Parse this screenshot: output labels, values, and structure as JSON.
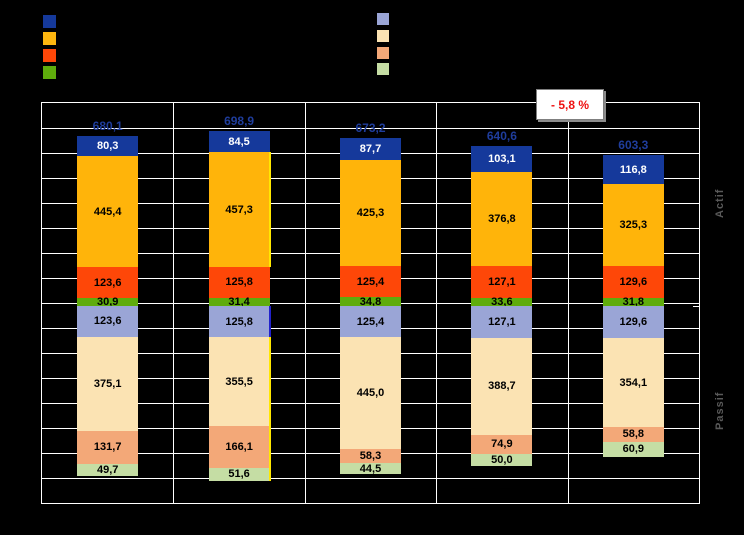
{
  "window": {
    "background": "#000000"
  },
  "legend": {
    "actif_swatches": [
      {
        "name": "navy",
        "color": "#15399B"
      },
      {
        "name": "amber",
        "color": "#FDB60F"
      },
      {
        "name": "orange-red",
        "color": "#FE4708"
      },
      {
        "name": "green",
        "color": "#5FAC0C"
      }
    ],
    "passif_swatches": [
      {
        "name": "periwinkle",
        "color": "#9AA5D6"
      },
      {
        "name": "cream",
        "color": "#FBE3B3"
      },
      {
        "name": "salmon",
        "color": "#F3A878"
      },
      {
        "name": "light-green",
        "color": "#C5DDA4"
      }
    ]
  },
  "annotation": {
    "text": "- 5,8 %",
    "text_color": "#EE1111",
    "background": "#FFFFFF"
  },
  "right_axis": {
    "top_label": "Actif",
    "bottom_label": "Passif",
    "color": "#595959"
  },
  "chart_data": {
    "type": "bar",
    "variant": "diverging-stacked",
    "description": "Actif stack grows upward from zero line, Passif stack grows downward; each bar's Actif total equals its Passif total",
    "categories": [
      "",
      "",
      "",
      "",
      ""
    ],
    "totals": [
      680.1,
      698.9,
      673.2,
      640.6,
      603.3
    ],
    "totals_display": [
      "680,1",
      "698,9",
      "673,2",
      "640,6",
      "603,3"
    ],
    "totals_color": "#1F3D9C",
    "grid": true,
    "value_per_gridline": 100,
    "gridline_color": "#FFFFFF",
    "series_actif": [
      {
        "name": "actif-navy",
        "color": "#15399B",
        "label_color": "#FFFFFF",
        "values": [
          80.3,
          84.5,
          87.7,
          103.1,
          116.8
        ]
      },
      {
        "name": "actif-amber",
        "color": "#FFB40A",
        "label_color": "#000000",
        "values": [
          445.4,
          457.3,
          425.3,
          376.8,
          325.3
        ]
      },
      {
        "name": "actif-orange-red",
        "color": "#FE4708",
        "label_color": "#000000",
        "values": [
          123.6,
          125.8,
          125.4,
          127.1,
          129.6
        ]
      },
      {
        "name": "actif-green",
        "color": "#5FAC0C",
        "label_color": "#000000",
        "values": [
          30.9,
          31.4,
          34.8,
          33.6,
          31.8
        ]
      }
    ],
    "series_passif": [
      {
        "name": "passif-periwinkle",
        "color": "#9AA5D6",
        "label_color": "#000000",
        "values": [
          123.6,
          125.8,
          125.4,
          127.1,
          129.6
        ]
      },
      {
        "name": "passif-cream",
        "color": "#FBE3B3",
        "label_color": "#000000",
        "values": [
          375.1,
          355.5,
          445.0,
          388.7,
          354.1
        ]
      },
      {
        "name": "passif-salmon",
        "color": "#F3A878",
        "label_color": "#000000",
        "values": [
          131.7,
          166.1,
          58.3,
          74.9,
          58.8
        ]
      },
      {
        "name": "passif-light-green",
        "color": "#C5DDA4",
        "label_color": "#000000",
        "values": [
          49.7,
          51.6,
          44.5,
          50.0,
          60.9
        ]
      }
    ],
    "selection_highlight": {
      "bar_index": 1,
      "amber_edge_color": "#FFE800",
      "periwinkle_edge_color": "#2222CC"
    }
  }
}
